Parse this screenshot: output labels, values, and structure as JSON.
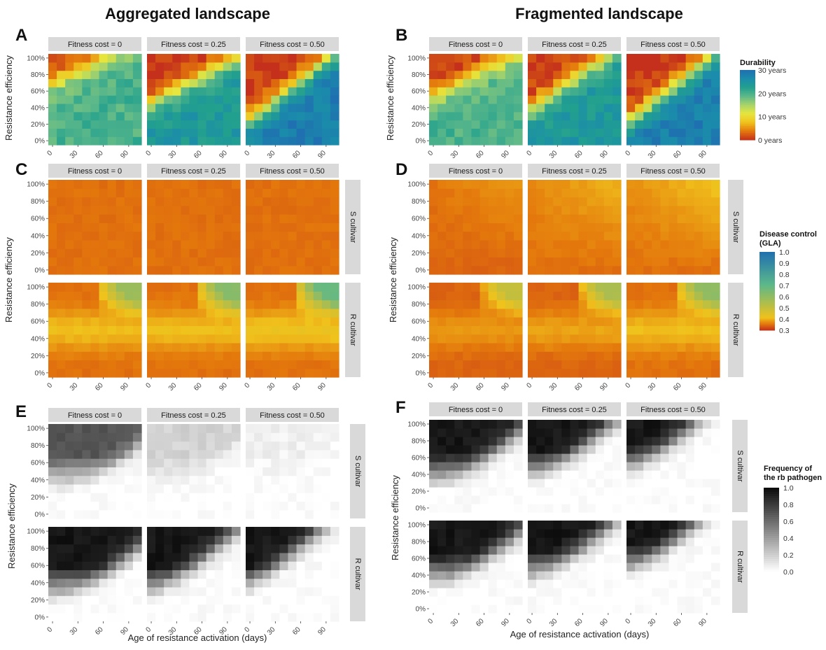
{
  "titles": {
    "left": "Aggregated landscape",
    "right": "Fragmented landscape"
  },
  "panel_letters": [
    "A",
    "B",
    "C",
    "D",
    "E",
    "F"
  ],
  "facet_labels": [
    "Fitness cost = 0",
    "Fitness cost = 0.25",
    "Fitness cost = 0.50"
  ],
  "row_strips": [
    "S cultivar",
    "R cultivar"
  ],
  "y_axis_label": "Resistance efficiency",
  "x_axis_label": "Age of resistance activation (days)",
  "y_ticks": [
    "0%",
    "20%",
    "40%",
    "60%",
    "80%",
    "100%"
  ],
  "x_ticks": [
    "0",
    "30",
    "60",
    "90"
  ],
  "legends": {
    "durability": {
      "title": [
        "Durability"
      ],
      "labels": [
        "30 years",
        "20 years",
        "10 years",
        "0 years"
      ]
    },
    "disease": {
      "title": [
        "Disease control",
        "(GLA)"
      ],
      "labels": [
        "1.0",
        "0.9",
        "0.8",
        "0.7",
        "0.6",
        "0.5",
        "0.4",
        "0.3"
      ]
    },
    "frequency": {
      "title": [
        "Frequency of",
        "the rb pathogen"
      ],
      "labels": [
        "1.0",
        "0.8",
        "0.6",
        "0.4",
        "0.2",
        "0.0"
      ]
    }
  },
  "colors": {
    "durability_scale": [
      "#c4301c",
      "#e4780c",
      "#f0c21c",
      "#e6e63e",
      "#a8d46a",
      "#5cb88a",
      "#22a08e",
      "#1b8cab",
      "#1f6fb0"
    ],
    "disease_scale": [
      "#c4301c",
      "#e4780c",
      "#f0c21c",
      "#5cb88a",
      "#1f6fb0"
    ],
    "frequency_scale": [
      "#ffffff",
      "#0a0a0a"
    ],
    "strip_fill": "#d9d9d9"
  },
  "chart_data": [
    {
      "panel": "A",
      "type": "heatmap",
      "landscape": "Aggregated landscape",
      "metric": "Durability (years)",
      "x_unit": "days",
      "y_unit": "%",
      "xlim": [
        0,
        100
      ],
      "ylim": [
        0,
        100
      ],
      "value_range": [
        0,
        30
      ],
      "facets": [
        {
          "facet": "Fitness cost = 0",
          "surface": {
            "boundary_intercept_pct": 70,
            "boundary_slope_pct_per_day": 0.5,
            "max_value": 20
          }
        },
        {
          "facet": "Fitness cost = 0.25",
          "surface": {
            "boundary_intercept_pct": 45,
            "boundary_slope_pct_per_day": 0.55,
            "max_value": 24
          }
        },
        {
          "facet": "Fitness cost = 0.50",
          "surface": {
            "boundary_intercept_pct": 25,
            "boundary_slope_pct_per_day": 0.8,
            "max_value": 28
          }
        }
      ]
    },
    {
      "panel": "B",
      "type": "heatmap",
      "landscape": "Fragmented landscape",
      "metric": "Durability (years)",
      "x_unit": "days",
      "y_unit": "%",
      "xlim": [
        0,
        100
      ],
      "ylim": [
        0,
        100
      ],
      "value_range": [
        0,
        30
      ],
      "facets": [
        {
          "facet": "Fitness cost = 0",
          "surface": {
            "boundary_intercept_pct": 55,
            "boundary_slope_pct_per_day": 0.5,
            "max_value": 20
          }
        },
        {
          "facet": "Fitness cost = 0.25",
          "surface": {
            "boundary_intercept_pct": 40,
            "boundary_slope_pct_per_day": 0.7,
            "max_value": 24
          }
        },
        {
          "facet": "Fitness cost = 0.50",
          "surface": {
            "boundary_intercept_pct": 25,
            "boundary_slope_pct_per_day": 0.8,
            "max_value": 28
          }
        }
      ]
    },
    {
      "panel": "C",
      "type": "heatmap",
      "landscape": "Aggregated landscape",
      "metric": "Disease control (GLA)",
      "x_unit": "days",
      "y_unit": "%",
      "xlim": [
        0,
        100
      ],
      "ylim": [
        0,
        100
      ],
      "value_range": [
        0.3,
        1.0
      ],
      "rows": [
        {
          "strip": "S cultivar",
          "facets": [
            {
              "facet": "Fitness cost = 0",
              "surface": {
                "base": 0.35,
                "top_gain": 0,
                "high_peak": 0
              }
            },
            {
              "facet": "Fitness cost = 0.25",
              "surface": {
                "base": 0.35,
                "top_gain": 0,
                "high_peak": 0
              }
            },
            {
              "facet": "Fitness cost = 0.50",
              "surface": {
                "base": 0.35,
                "top_gain": 0,
                "high_peak": 0
              }
            }
          ]
        },
        {
          "strip": "R cultivar",
          "facets": [
            {
              "facet": "Fitness cost = 0",
              "surface": {
                "base": 0.35,
                "mid_gain": 0.06,
                "high_peak": 0.58
              }
            },
            {
              "facet": "Fitness cost = 0.25",
              "surface": {
                "base": 0.35,
                "mid_gain": 0.06,
                "high_peak": 0.62
              }
            },
            {
              "facet": "Fitness cost = 0.50",
              "surface": {
                "base": 0.35,
                "mid_gain": 0.07,
                "high_peak": 0.68
              }
            }
          ]
        }
      ]
    },
    {
      "panel": "D",
      "type": "heatmap",
      "landscape": "Fragmented landscape",
      "metric": "Disease control (GLA)",
      "x_unit": "days",
      "y_unit": "%",
      "xlim": [
        0,
        100
      ],
      "ylim": [
        0,
        100
      ],
      "value_range": [
        0.3,
        1.0
      ],
      "rows": [
        {
          "strip": "S cultivar",
          "facets": [
            {
              "facet": "Fitness cost = 0",
              "surface": {
                "base": 0.34,
                "top_gain": 0.035,
                "high_peak": 0
              }
            },
            {
              "facet": "Fitness cost = 0.25",
              "surface": {
                "base": 0.35,
                "top_gain": 0.045,
                "high_peak": 0
              }
            },
            {
              "facet": "Fitness cost = 0.50",
              "surface": {
                "base": 0.35,
                "top_gain": 0.06,
                "high_peak": 0
              }
            }
          ]
        },
        {
          "strip": "R cultivar",
          "facets": [
            {
              "facet": "Fitness cost = 0",
              "surface": {
                "base": 0.34,
                "mid_gain": 0.04,
                "high_peak": 0.5
              }
            },
            {
              "facet": "Fitness cost = 0.25",
              "surface": {
                "base": 0.34,
                "mid_gain": 0.05,
                "high_peak": 0.55
              }
            },
            {
              "facet": "Fitness cost = 0.50",
              "surface": {
                "base": 0.35,
                "mid_gain": 0.06,
                "high_peak": 0.6
              }
            }
          ]
        }
      ]
    },
    {
      "panel": "E",
      "type": "heatmap",
      "landscape": "Aggregated landscape",
      "metric": "Frequency of the rb pathogen",
      "x_unit": "days",
      "y_unit": "%",
      "xlim": [
        0,
        100
      ],
      "ylim": [
        0,
        100
      ],
      "value_range": [
        0,
        1
      ],
      "rows": [
        {
          "strip": "S cultivar",
          "facets": [
            {
              "facet": "Fitness cost = 0",
              "surface": {
                "peak": 0.7,
                "boundary_intercept_pct": 0,
                "boundary_slope_pct_per_day": 0.8,
                "floor_pct": 25
              }
            },
            {
              "facet": "Fitness cost = 0.25",
              "surface": {
                "peak": 0.18,
                "boundary_intercept_pct": 0,
                "boundary_slope_pct_per_day": 0.8,
                "floor_pct": 25
              }
            },
            {
              "facet": "Fitness cost = 0.50",
              "surface": {
                "peak": 0.06,
                "boundary_intercept_pct": 0,
                "boundary_slope_pct_per_day": 0.8,
                "floor_pct": 25
              }
            }
          ]
        },
        {
          "strip": "R cultivar",
          "facets": [
            {
              "facet": "Fitness cost = 0",
              "surface": {
                "peak": 0.95,
                "boundary_intercept_pct": 0,
                "boundary_slope_pct_per_day": 0.8,
                "floor_pct": 15
              }
            },
            {
              "facet": "Fitness cost = 0.25",
              "surface": {
                "peak": 0.95,
                "boundary_intercept_pct": 20,
                "boundary_slope_pct_per_day": 0.8,
                "floor_pct": 15
              }
            },
            {
              "facet": "Fitness cost = 0.50",
              "surface": {
                "peak": 0.95,
                "boundary_intercept_pct": 35,
                "boundary_slope_pct_per_day": 0.8,
                "floor_pct": 15
              }
            }
          ]
        }
      ]
    },
    {
      "panel": "F",
      "type": "heatmap",
      "landscape": "Fragmented landscape",
      "metric": "Frequency of the rb pathogen",
      "x_unit": "days",
      "y_unit": "%",
      "xlim": [
        0,
        100
      ],
      "ylim": [
        0,
        100
      ],
      "value_range": [
        0,
        1
      ],
      "rows": [
        {
          "strip": "S cultivar",
          "facets": [
            {
              "facet": "Fitness cost = 0",
              "surface": {
                "peak": 0.95,
                "boundary_intercept_pct": 10,
                "boundary_slope_pct_per_day": 0.8,
                "floor_pct": 20
              }
            },
            {
              "facet": "Fitness cost = 0.25",
              "surface": {
                "peak": 0.95,
                "boundary_intercept_pct": 25,
                "boundary_slope_pct_per_day": 0.8,
                "floor_pct": 25
              }
            },
            {
              "facet": "Fitness cost = 0.50",
              "surface": {
                "peak": 0.95,
                "boundary_intercept_pct": 40,
                "boundary_slope_pct_per_day": 0.8,
                "floor_pct": 30
              }
            }
          ]
        },
        {
          "strip": "R cultivar",
          "facets": [
            {
              "facet": "Fitness cost = 0",
              "surface": {
                "peak": 0.95,
                "boundary_intercept_pct": 10,
                "boundary_slope_pct_per_day": 0.8,
                "floor_pct": 20
              }
            },
            {
              "facet": "Fitness cost = 0.25",
              "surface": {
                "peak": 0.95,
                "boundary_intercept_pct": 25,
                "boundary_slope_pct_per_day": 0.8,
                "floor_pct": 25
              }
            },
            {
              "facet": "Fitness cost = 0.50",
              "surface": {
                "peak": 0.95,
                "boundary_intercept_pct": 40,
                "boundary_slope_pct_per_day": 0.8,
                "floor_pct": 30
              }
            }
          ]
        }
      ]
    }
  ]
}
